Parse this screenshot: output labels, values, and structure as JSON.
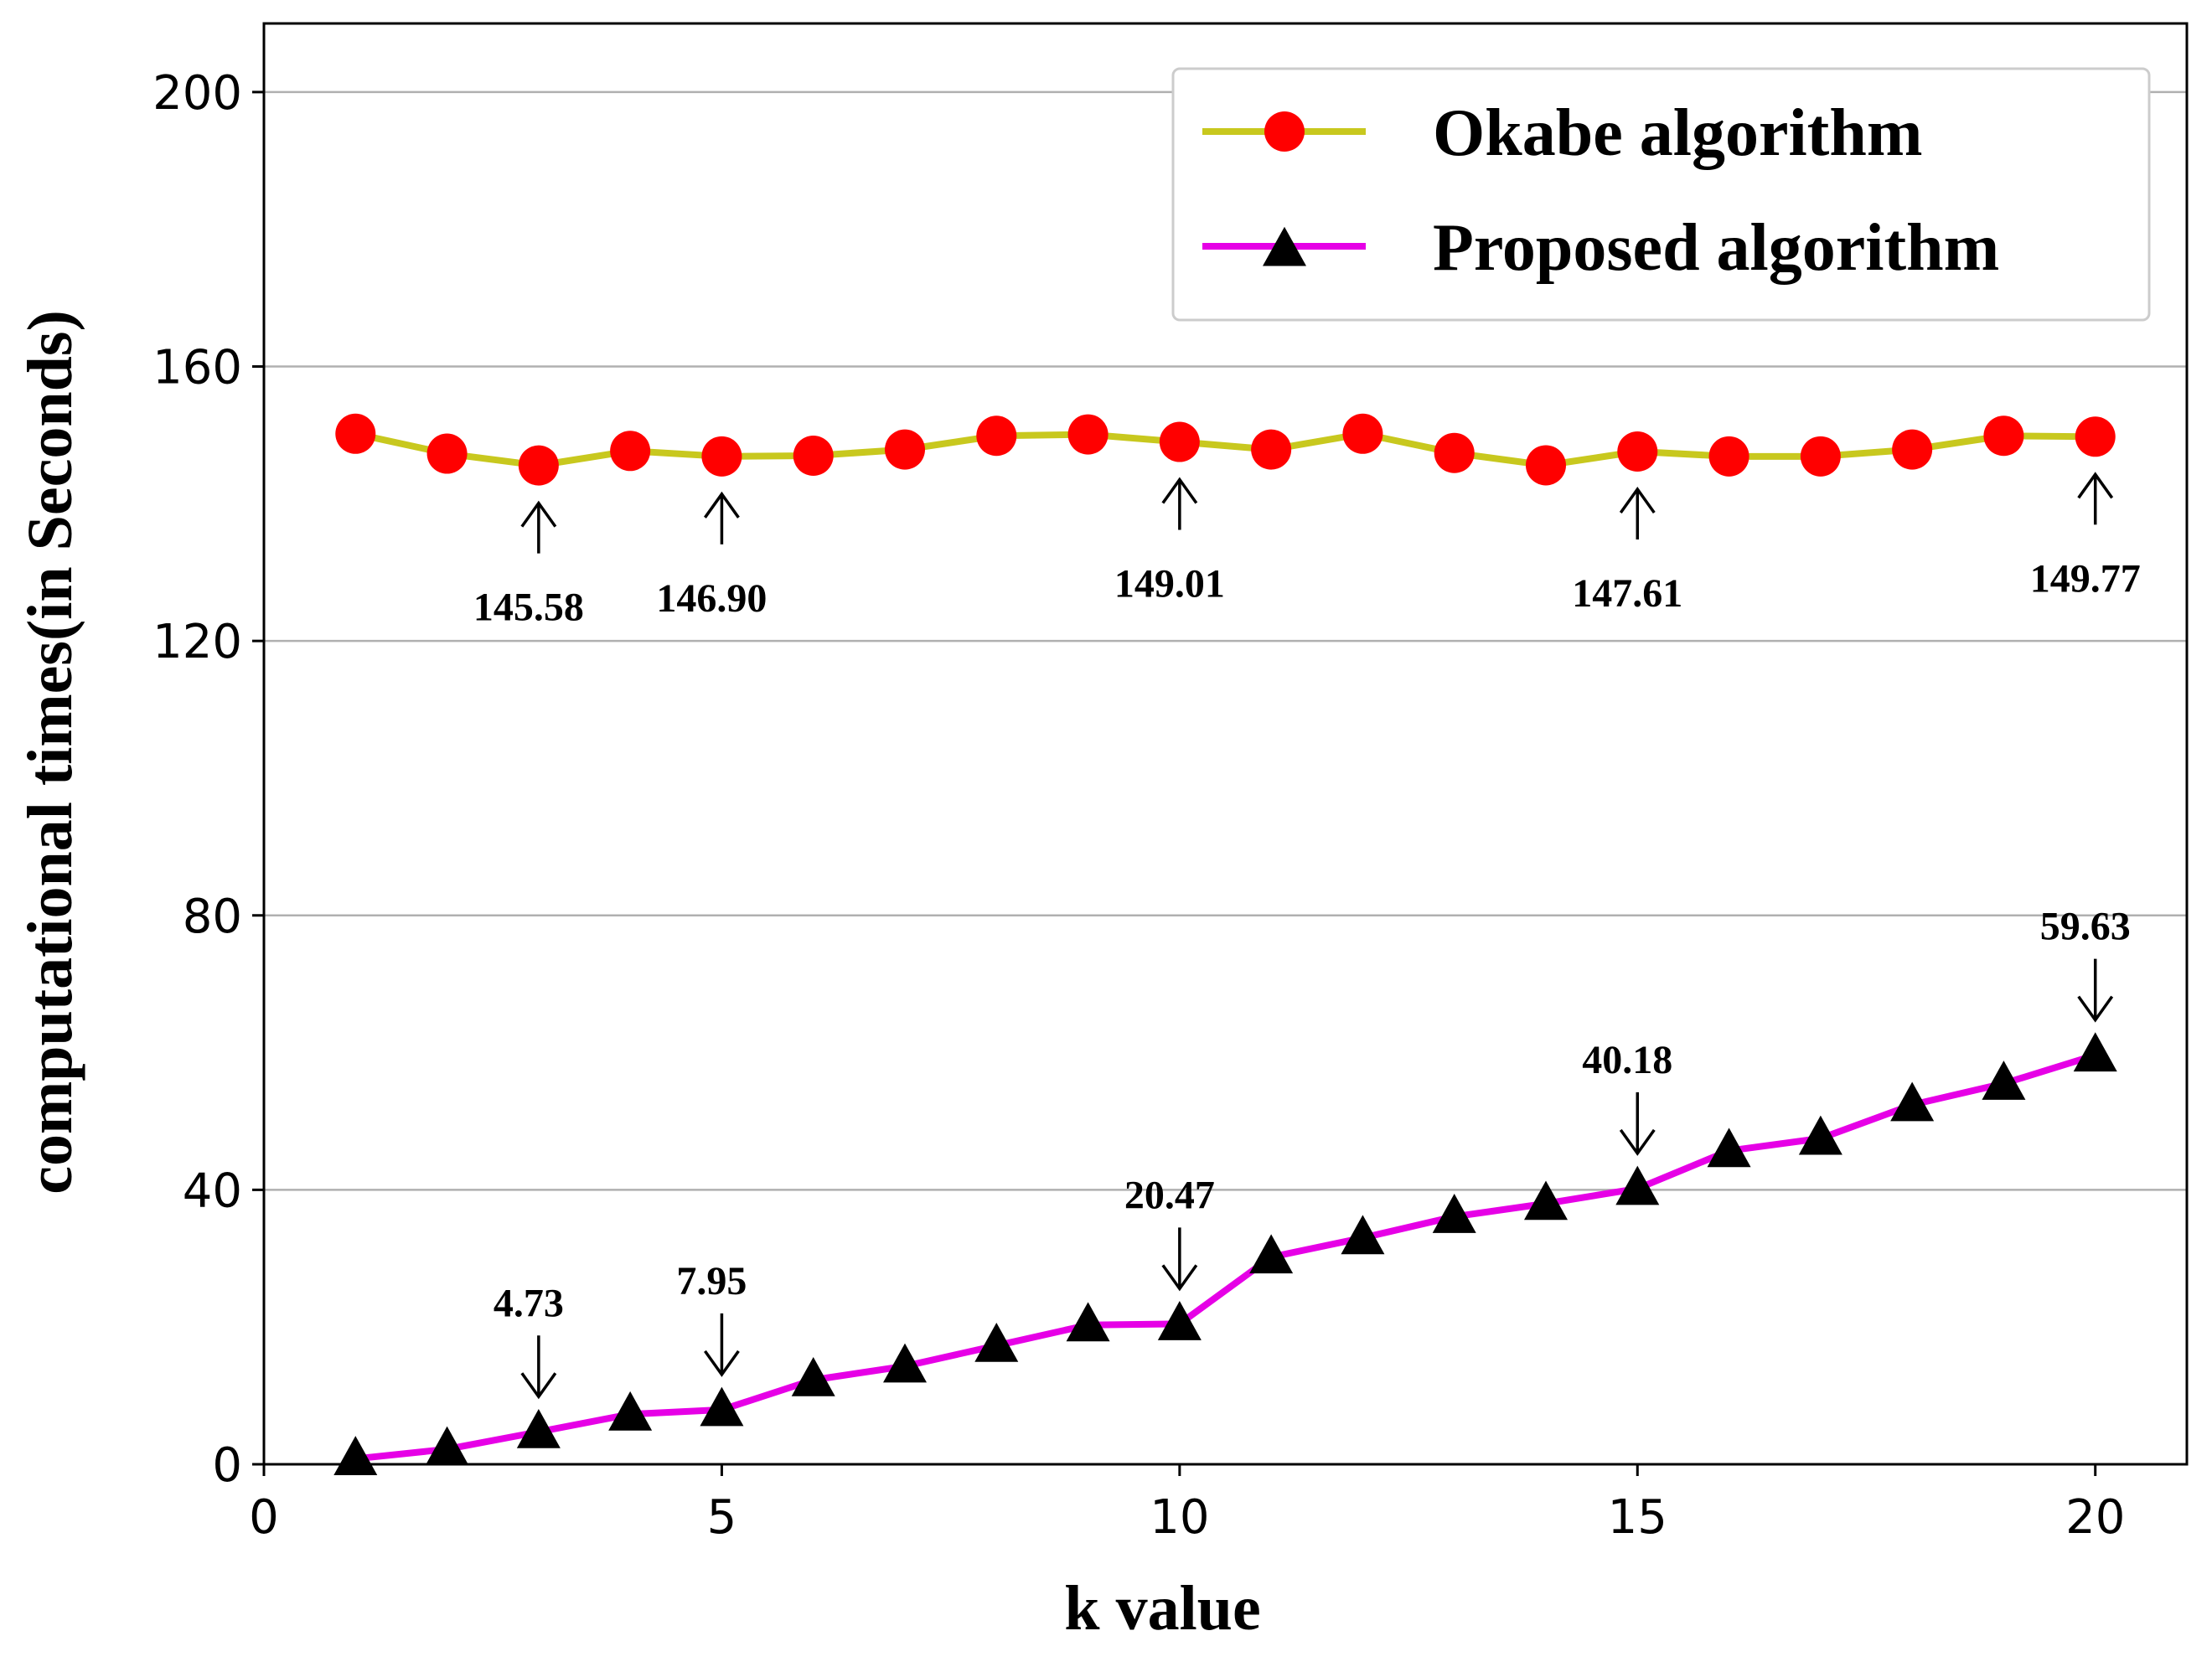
{
  "chart_data": {
    "type": "line",
    "title": "",
    "xlabel": "k value",
    "ylabel": "computational times(in Seconds)",
    "xlim": [
      0,
      21
    ],
    "ylim": [
      0,
      210
    ],
    "xticks": [
      0,
      5,
      10,
      15,
      20
    ],
    "yticks": [
      0,
      40,
      80,
      120,
      160,
      200
    ],
    "grid": "horizontal",
    "legend_position": "top-right",
    "x": [
      1,
      2,
      3,
      4,
      5,
      6,
      7,
      8,
      9,
      10,
      11,
      12,
      13,
      14,
      15,
      16,
      17,
      18,
      19,
      20
    ],
    "series": [
      {
        "name": "Okabe algorithm",
        "color": "#c8c81e",
        "marker": "circle",
        "marker_color": "#ff0000",
        "values": [
          150.2,
          147.3,
          145.58,
          147.7,
          146.9,
          147.0,
          147.9,
          149.9,
          150.1,
          149.01,
          147.9,
          150.2,
          147.4,
          145.6,
          147.61,
          146.9,
          146.9,
          147.9,
          149.9,
          149.77
        ]
      },
      {
        "name": "Proposed algorithm",
        "color": "#e600e6",
        "marker": "triangle",
        "marker_color": "#000000",
        "values": [
          0.8,
          2.2,
          4.73,
          7.3,
          7.95,
          12.3,
          14.3,
          17.3,
          20.3,
          20.47,
          30.2,
          33.0,
          36.1,
          38.0,
          40.18,
          45.7,
          47.5,
          52.4,
          55.5,
          59.63
        ]
      }
    ],
    "annotations": [
      {
        "series": 0,
        "x": 3,
        "text": "145.58"
      },
      {
        "series": 0,
        "x": 5,
        "text": "146.90"
      },
      {
        "series": 0,
        "x": 10,
        "text": "149.01"
      },
      {
        "series": 0,
        "x": 15,
        "text": "147.61"
      },
      {
        "series": 0,
        "x": 20,
        "text": "149.77"
      },
      {
        "series": 1,
        "x": 3,
        "text": "4.73"
      },
      {
        "series": 1,
        "x": 5,
        "text": "7.95"
      },
      {
        "series": 1,
        "x": 10,
        "text": "20.47"
      },
      {
        "series": 1,
        "x": 15,
        "text": "40.18"
      },
      {
        "series": 1,
        "x": 20,
        "text": "59.63"
      }
    ]
  }
}
